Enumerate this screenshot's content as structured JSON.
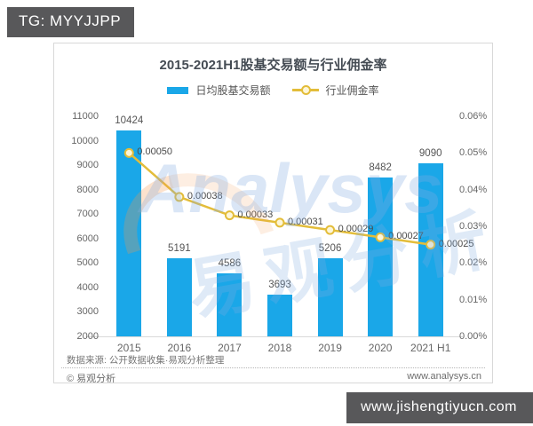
{
  "overlays": {
    "top_left_banner": "TG: MYYJJPP",
    "bottom_right_banner": "www.jishengtiyucn.com",
    "banner_color": "#58585a"
  },
  "chart_data": {
    "type": "bar+line",
    "title": "2015-2021H1股基交易额与行业佣金率",
    "categories": [
      "2015",
      "2016",
      "2017",
      "2018",
      "2019",
      "2020",
      "2021 H1"
    ],
    "series": [
      {
        "name": "日均股基交易额",
        "type": "bar",
        "axis": "left",
        "color": "#1aa7e8",
        "values": [
          10424,
          5191,
          4586,
          3693,
          5206,
          8482,
          9090
        ],
        "value_labels": [
          "10424",
          "5191",
          "4586",
          "3693",
          "5206",
          "8482",
          "9090"
        ]
      },
      {
        "name": "行业佣金率",
        "type": "line",
        "axis": "right",
        "color": "#e3bd3a",
        "marker_fill": "#fdf6d8",
        "values": [
          0.0005,
          0.00038,
          0.00033,
          0.00031,
          0.00029,
          0.00027,
          0.00025
        ],
        "value_labels": [
          "0.00050",
          "0.00038",
          "0.00033",
          "0.00031",
          "0.00029",
          "0.00027",
          "0.00025"
        ]
      }
    ],
    "left_axis": {
      "min": 2000,
      "max": 11000,
      "tick_values": [
        2000,
        3000,
        4000,
        5000,
        6000,
        7000,
        8000,
        9000,
        10000,
        11000
      ],
      "tick_labels": [
        "2000",
        "3000",
        "4000",
        "5000",
        "6000",
        "7000",
        "8000",
        "9000",
        "10000",
        "11000"
      ]
    },
    "right_axis": {
      "min": 0,
      "max": 0.0006,
      "tick_values": [
        0,
        0.0001,
        0.0002,
        0.0003,
        0.0004,
        0.0005,
        0.0006
      ],
      "tick_labels": [
        "0.00%",
        "0.01%",
        "0.02%",
        "0.03%",
        "0.04%",
        "0.05%",
        "0.06%"
      ]
    },
    "grid": "off",
    "legend_position": "top",
    "source_note": "数据来源: 公开数据收集·易观分析整理",
    "footer_left": "© 易观分析",
    "footer_right": "www.analysys.cn",
    "watermark_en": "Analysys",
    "watermark_cn": "易观分析"
  }
}
